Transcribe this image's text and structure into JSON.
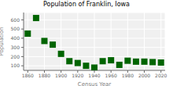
{
  "chart_data": {
    "type": "scatter",
    "title": "Population of Franklin, Iowa",
    "xlabel": "Census Year",
    "ylabel": "Population",
    "x": [
      1860,
      1870,
      1880,
      1890,
      1900,
      1910,
      1920,
      1930,
      1940,
      1950,
      1960,
      1970,
      1980,
      1990,
      2000,
      2010,
      2020
    ],
    "values": [
      450,
      620,
      370,
      330,
      230,
      150,
      130,
      100,
      80,
      150,
      160,
      110,
      155,
      145,
      145,
      140,
      135
    ],
    "color": "#006400",
    "marker": "square",
    "xlim": [
      1855,
      2025
    ],
    "ylim": [
      50,
      680
    ],
    "xticks": [
      1860,
      1880,
      1900,
      1920,
      1940,
      1960,
      1980,
      2000,
      2020
    ],
    "yticks": [
      100,
      200,
      300,
      400,
      500,
      600
    ],
    "grid": true
  }
}
